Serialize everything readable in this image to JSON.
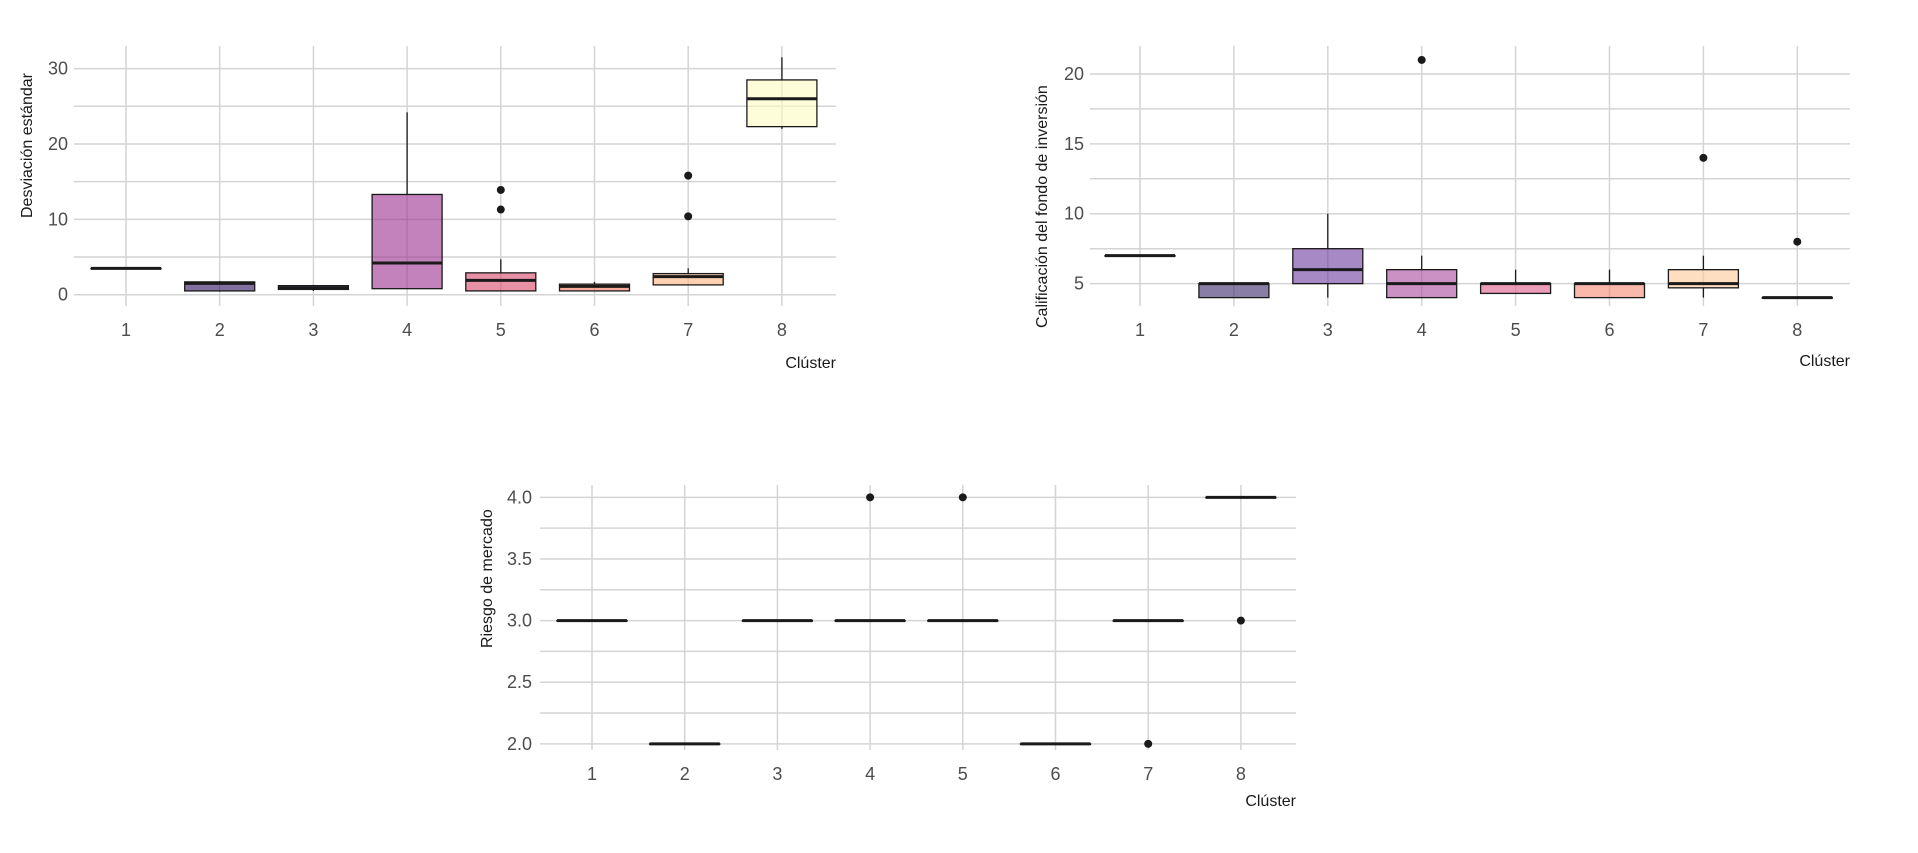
{
  "chart_data": [
    {
      "type": "box",
      "xlabel": "Clúster",
      "ylabel": "Desviación estándar",
      "categories": [
        "1",
        "2",
        "3",
        "4",
        "5",
        "6",
        "7",
        "8"
      ],
      "ylim": [
        -1.5,
        33
      ],
      "yticks": [
        0,
        10,
        20,
        30
      ],
      "minor_grid": [
        5,
        15,
        25
      ],
      "fill_colors": [
        "#000004",
        "#2c115f",
        "#721f81",
        "#b73779",
        "#f1605d",
        "#feaf77",
        "#fcfdbf",
        "#fcfdbf"
      ],
      "boxes": [
        {
          "cluster": "1",
          "min": 3.5,
          "q1": 3.5,
          "median": 3.5,
          "q3": 3.5,
          "max": 3.5,
          "outliers": [],
          "fill": "#000004"
        },
        {
          "cluster": "2",
          "min": 0.4,
          "q1": 0.5,
          "median": 1.5,
          "q3": 1.7,
          "max": 1.8,
          "outliers": [],
          "fill": "#2c115f"
        },
        {
          "cluster": "3",
          "min": 0.5,
          "q1": 0.7,
          "median": 0.9,
          "q3": 1.2,
          "max": 1.3,
          "outliers": [],
          "fill": "#2c115f"
        },
        {
          "cluster": "4",
          "min": 0.8,
          "q1": 0.8,
          "median": 4.2,
          "q3": 13.3,
          "max": 24.2,
          "outliers": [],
          "fill": "#9c2e90"
        },
        {
          "cluster": "5",
          "min": 0.5,
          "q1": 0.5,
          "median": 1.9,
          "q3": 2.9,
          "max": 4.7,
          "outliers": [
            11.3,
            13.9
          ],
          "fill": "#d9466b"
        },
        {
          "cluster": "6",
          "min": 0.5,
          "q1": 0.5,
          "median": 1.1,
          "q3": 1.4,
          "max": 1.7,
          "outliers": [],
          "fill": "#f7705c"
        },
        {
          "cluster": "7",
          "min": 1.3,
          "q1": 1.3,
          "median": 2.4,
          "q3": 2.8,
          "max": 3.5,
          "outliers": [
            10.4,
            15.8
          ],
          "fill": "#fcb07d"
        },
        {
          "cluster": "8",
          "min": 22.0,
          "q1": 22.3,
          "median": 26.0,
          "q3": 28.5,
          "max": 31.5,
          "outliers": [],
          "fill": "#fcfbbf"
        }
      ]
    },
    {
      "type": "box",
      "xlabel": "Clúster",
      "ylabel": "Calificación del fondo de inversión",
      "categories": [
        "1",
        "2",
        "3",
        "4",
        "5",
        "6",
        "7",
        "8"
      ],
      "ylim": [
        3.4,
        22
      ],
      "yticks": [
        5,
        10,
        15,
        20
      ],
      "minor_grid": [
        7.5,
        12.5,
        17.5
      ],
      "boxes": [
        {
          "cluster": "1",
          "min": 7,
          "q1": 7,
          "median": 7,
          "q3": 7,
          "max": 7,
          "outliers": [],
          "fill": "#000004"
        },
        {
          "cluster": "2",
          "min": 4,
          "q1": 4,
          "median": 5,
          "q3": 5,
          "max": 5,
          "outliers": [],
          "fill": "#3b2a6b"
        },
        {
          "cluster": "3",
          "min": 4,
          "q1": 5,
          "median": 6,
          "q3": 7.5,
          "max": 10,
          "outliers": [],
          "fill": "#6a3a9e"
        },
        {
          "cluster": "4",
          "min": 4,
          "q1": 4,
          "median": 5,
          "q3": 6,
          "max": 7,
          "outliers": [
            21
          ],
          "fill": "#a8479f"
        },
        {
          "cluster": "5",
          "min": 4.3,
          "q1": 4.3,
          "median": 5,
          "q3": 5,
          "max": 6,
          "outliers": [],
          "fill": "#dc5a8a"
        },
        {
          "cluster": "6",
          "min": 4,
          "q1": 4,
          "median": 5,
          "q3": 5,
          "max": 6,
          "outliers": [],
          "fill": "#f58870"
        },
        {
          "cluster": "7",
          "min": 4,
          "q1": 4.7,
          "median": 5,
          "q3": 6,
          "max": 7,
          "outliers": [
            14
          ],
          "fill": "#fdc896"
        },
        {
          "cluster": "8",
          "min": 4,
          "q1": 4,
          "median": 4,
          "q3": 4,
          "max": 4,
          "outliers": [
            8
          ],
          "fill": "#fcfbbf"
        }
      ]
    },
    {
      "type": "box",
      "xlabel": "Clúster",
      "ylabel": "Riesgo de mercado",
      "categories": [
        "1",
        "2",
        "3",
        "4",
        "5",
        "6",
        "7",
        "8"
      ],
      "ylim": [
        1.95,
        4.1
      ],
      "yticks": [
        "2.0",
        "2.5",
        "3.0",
        "3.5",
        "4.0"
      ],
      "minor_grid": [
        2.25,
        2.75,
        3.25,
        3.75
      ],
      "boxes": [
        {
          "cluster": "1",
          "min": 3,
          "q1": 3,
          "median": 3,
          "q3": 3,
          "max": 3,
          "outliers": [],
          "fill": "#000004"
        },
        {
          "cluster": "2",
          "min": 2,
          "q1": 2,
          "median": 2,
          "q3": 2,
          "max": 2,
          "outliers": [],
          "fill": "#2c115f"
        },
        {
          "cluster": "3",
          "min": 3,
          "q1": 3,
          "median": 3,
          "q3": 3,
          "max": 3,
          "outliers": [],
          "fill": "#721f81"
        },
        {
          "cluster": "4",
          "min": 3,
          "q1": 3,
          "median": 3,
          "q3": 3,
          "max": 3,
          "outliers": [
            4
          ],
          "fill": "#b73779"
        },
        {
          "cluster": "5",
          "min": 3,
          "q1": 3,
          "median": 3,
          "q3": 3,
          "max": 3,
          "outliers": [
            4
          ],
          "fill": "#f1605d"
        },
        {
          "cluster": "6",
          "min": 2,
          "q1": 2,
          "median": 2,
          "q3": 2,
          "max": 2,
          "outliers": [],
          "fill": "#feaf77"
        },
        {
          "cluster": "7",
          "min": 3,
          "q1": 3,
          "median": 3,
          "q3": 3,
          "max": 3,
          "outliers": [
            2
          ],
          "fill": "#fcd7a0"
        },
        {
          "cluster": "8",
          "min": 4,
          "q1": 4,
          "median": 4,
          "q3": 4,
          "max": 4,
          "outliers": [
            3
          ],
          "fill": "#fcfdbf"
        }
      ]
    }
  ]
}
